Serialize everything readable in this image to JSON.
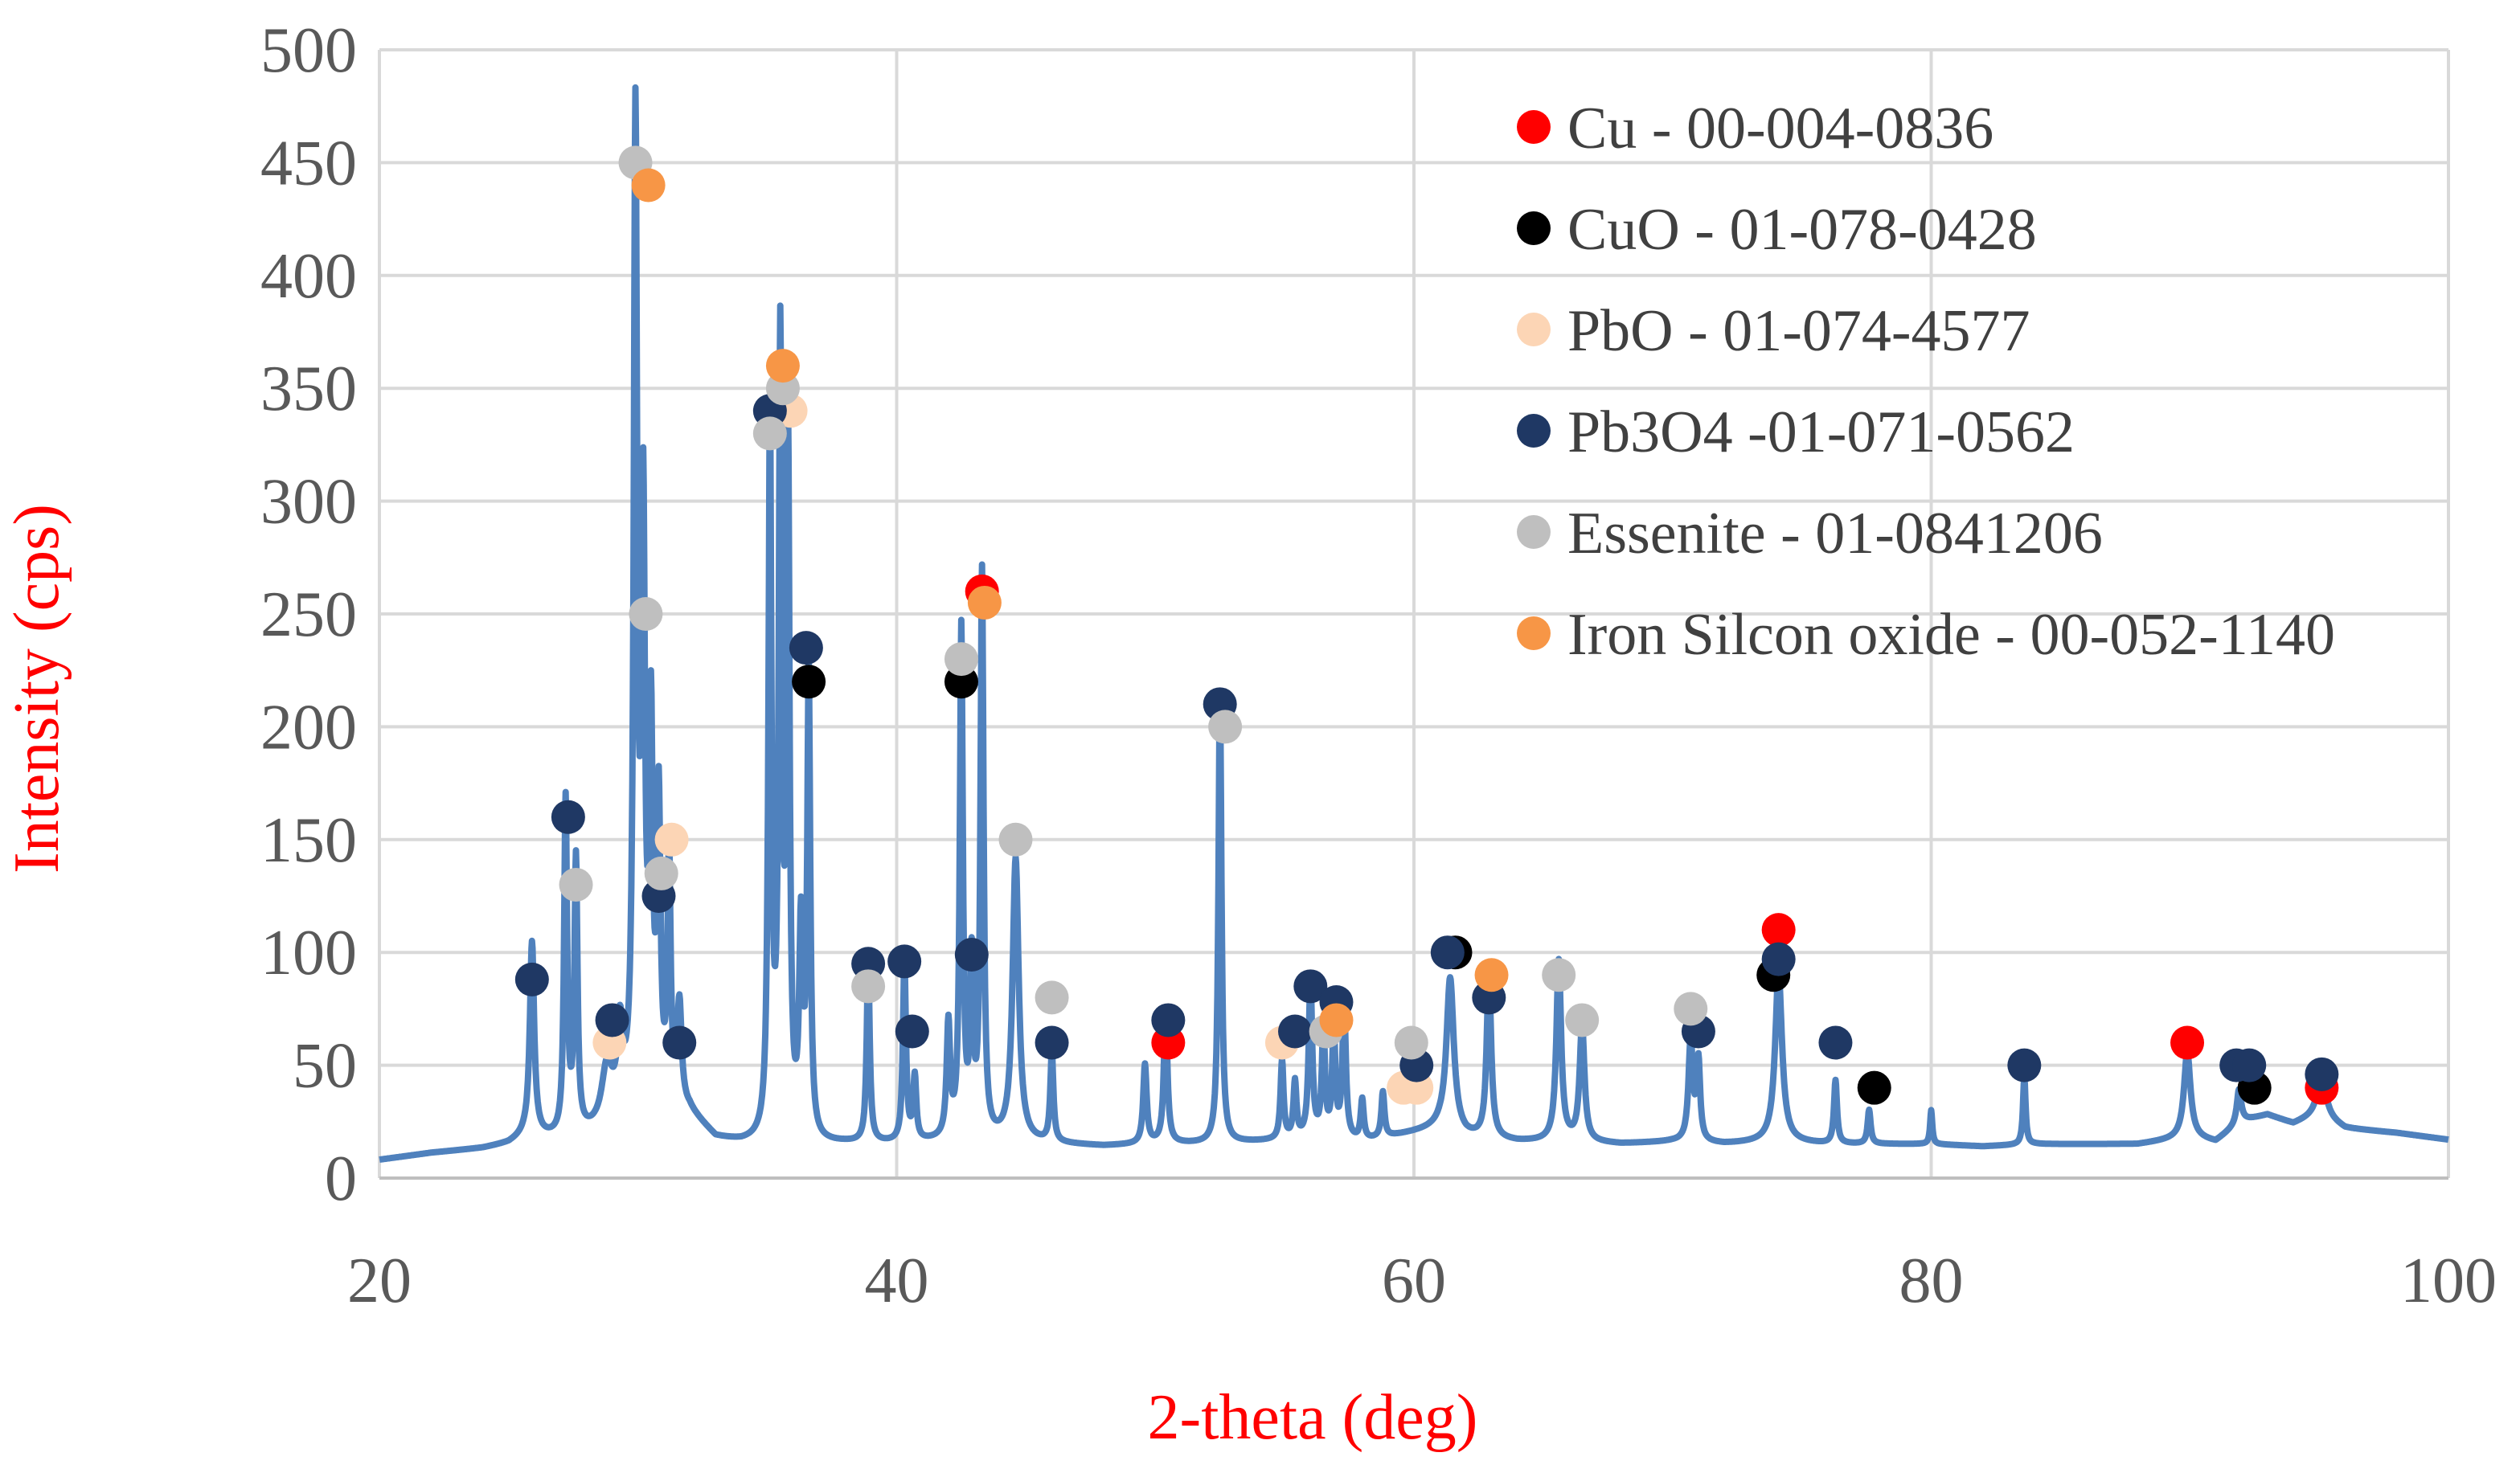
{
  "chart_data": {
    "type": "line",
    "title": "",
    "xlabel": "2-theta (deg)",
    "ylabel": "Intensity (cps)",
    "xlim": [
      20,
      100
    ],
    "ylim": [
      0,
      500
    ],
    "xticks": [
      20,
      40,
      60,
      80,
      100
    ],
    "yticks": [
      0,
      50,
      100,
      150,
      200,
      250,
      300,
      350,
      400,
      450,
      500
    ],
    "grid": true,
    "legend_position": "top-right",
    "line_color": "#4f81bd",
    "baseline": [
      [
        20,
        8
      ],
      [
        22,
        11
      ],
      [
        24,
        13
      ],
      [
        25,
        15
      ],
      [
        25.6,
        18
      ],
      [
        27,
        17
      ],
      [
        28.5,
        20
      ],
      [
        30,
        30
      ],
      [
        32,
        28
      ],
      [
        33,
        17
      ],
      [
        34,
        15
      ],
      [
        36,
        14
      ],
      [
        38,
        15
      ],
      [
        40,
        15
      ],
      [
        42,
        16
      ],
      [
        44,
        16
      ],
      [
        46,
        15
      ],
      [
        48,
        14
      ],
      [
        50,
        15
      ],
      [
        52,
        15
      ],
      [
        54,
        16
      ],
      [
        56,
        17
      ],
      [
        58,
        16
      ],
      [
        60,
        20
      ],
      [
        61,
        22
      ],
      [
        62,
        18
      ],
      [
        64,
        16
      ],
      [
        66,
        16
      ],
      [
        68,
        15
      ],
      [
        70,
        16
      ],
      [
        72,
        15
      ],
      [
        74,
        16
      ],
      [
        76,
        15
      ],
      [
        78,
        15
      ],
      [
        80,
        15
      ],
      [
        82,
        14
      ],
      [
        84,
        15
      ],
      [
        86,
        15
      ],
      [
        88,
        15
      ],
      [
        90,
        18
      ],
      [
        91,
        16
      ],
      [
        92,
        25
      ],
      [
        93,
        28
      ],
      [
        94,
        24
      ],
      [
        95,
        28
      ],
      [
        96,
        22
      ],
      [
        98,
        20
      ],
      [
        100,
        17
      ]
    ],
    "peaks": [
      {
        "x": 25.9,
        "y": 86,
        "w": 0.1
      },
      {
        "x": 27.2,
        "y": 148,
        "w": 0.07
      },
      {
        "x": 27.6,
        "y": 120,
        "w": 0.07
      },
      {
        "x": 28.8,
        "y": 25,
        "w": 0.25
      },
      {
        "x": 29.3,
        "y": 35,
        "w": 0.12
      },
      {
        "x": 29.9,
        "y": 430,
        "w": 0.08
      },
      {
        "x": 30.2,
        "y": 250,
        "w": 0.08
      },
      {
        "x": 30.5,
        "y": 160,
        "w": 0.08
      },
      {
        "x": 30.8,
        "y": 130,
        "w": 0.08
      },
      {
        "x": 31.2,
        "y": 110,
        "w": 0.07
      },
      {
        "x": 31.6,
        "y": 45,
        "w": 0.1
      },
      {
        "x": 35.1,
        "y": 315,
        "w": 0.07
      },
      {
        "x": 35.5,
        "y": 345,
        "w": 0.07
      },
      {
        "x": 35.8,
        "y": 305,
        "w": 0.07
      },
      {
        "x": 36.3,
        "y": 90,
        "w": 0.08
      },
      {
        "x": 36.6,
        "y": 205,
        "w": 0.07
      },
      {
        "x": 38.9,
        "y": 80,
        "w": 0.07
      },
      {
        "x": 40.3,
        "y": 80,
        "w": 0.07
      },
      {
        "x": 40.7,
        "y": 28,
        "w": 0.07
      },
      {
        "x": 42.0,
        "y": 50,
        "w": 0.08
      },
      {
        "x": 42.5,
        "y": 225,
        "w": 0.07
      },
      {
        "x": 42.9,
        "y": 75,
        "w": 0.07
      },
      {
        "x": 43.3,
        "y": 250,
        "w": 0.07
      },
      {
        "x": 44.6,
        "y": 125,
        "w": 0.14
      },
      {
        "x": 46.0,
        "y": 40,
        "w": 0.07
      },
      {
        "x": 49.6,
        "y": 35,
        "w": 0.08
      },
      {
        "x": 50.4,
        "y": 60,
        "w": 0.08
      },
      {
        "x": 52.5,
        "y": 200,
        "w": 0.07
      },
      {
        "x": 54.9,
        "y": 35,
        "w": 0.07
      },
      {
        "x": 55.4,
        "y": 25,
        "w": 0.07
      },
      {
        "x": 56.0,
        "y": 70,
        "w": 0.08
      },
      {
        "x": 56.5,
        "y": 50,
        "w": 0.07
      },
      {
        "x": 56.9,
        "y": 50,
        "w": 0.07
      },
      {
        "x": 57.3,
        "y": 60,
        "w": 0.08
      },
      {
        "x": 58.0,
        "y": 18,
        "w": 0.07
      },
      {
        "x": 58.8,
        "y": 20,
        "w": 0.07
      },
      {
        "x": 61.4,
        "y": 68,
        "w": 0.17
      },
      {
        "x": 62.9,
        "y": 75,
        "w": 0.1
      },
      {
        "x": 65.6,
        "y": 80,
        "w": 0.11
      },
      {
        "x": 66.5,
        "y": 52,
        "w": 0.11
      },
      {
        "x": 70.7,
        "y": 45,
        "w": 0.1
      },
      {
        "x": 71.0,
        "y": 35,
        "w": 0.08
      },
      {
        "x": 74.1,
        "y": 75,
        "w": 0.16
      },
      {
        "x": 76.3,
        "y": 28,
        "w": 0.07
      },
      {
        "x": 77.6,
        "y": 15,
        "w": 0.07
      },
      {
        "x": 80.0,
        "y": 15,
        "w": 0.05
      },
      {
        "x": 83.6,
        "y": 30,
        "w": 0.06
      },
      {
        "x": 89.9,
        "y": 38,
        "w": 0.15
      },
      {
        "x": 91.9,
        "y": 15,
        "w": 0.1
      },
      {
        "x": 95.1,
        "y": 18,
        "w": 0.2
      }
    ],
    "series": [
      {
        "name": "Cu - 00-004-0836",
        "color": "#ff0000",
        "points": [
          [
            43.3,
            260
          ],
          [
            50.5,
            60
          ],
          [
            74.1,
            110
          ],
          [
            89.9,
            60
          ],
          [
            95.1,
            40
          ]
        ]
      },
      {
        "name": "CuO - 01-078-0428",
        "color": "#000000",
        "points": [
          [
            36.6,
            220
          ],
          [
            42.5,
            220
          ],
          [
            61.6,
            100
          ],
          [
            73.9,
            90
          ],
          [
            77.8,
            40
          ],
          [
            92.5,
            40
          ]
        ]
      },
      {
        "name": "PbO - 01-074-4577",
        "color": "#fcd5b5",
        "points": [
          [
            28.9,
            60
          ],
          [
            31.3,
            150
          ],
          [
            35.9,
            340
          ],
          [
            54.9,
            60
          ],
          [
            59.6,
            40
          ],
          [
            60.1,
            40
          ]
        ]
      },
      {
        "name": "Pb3O4 -01-071-0562",
        "color": "#1f3864",
        "points": [
          [
            25.9,
            88
          ],
          [
            27.3,
            160
          ],
          [
            29.0,
            70
          ],
          [
            30.8,
            125
          ],
          [
            31.6,
            60
          ],
          [
            35.1,
            340
          ],
          [
            36.5,
            235
          ],
          [
            38.9,
            95
          ],
          [
            40.3,
            96
          ],
          [
            40.6,
            65
          ],
          [
            42.9,
            99
          ],
          [
            46.0,
            60
          ],
          [
            50.5,
            70
          ],
          [
            52.5,
            210
          ],
          [
            55.4,
            65
          ],
          [
            56.0,
            85
          ],
          [
            57.0,
            78
          ],
          [
            60.1,
            50
          ],
          [
            61.3,
            100
          ],
          [
            62.9,
            80
          ],
          [
            71.0,
            65
          ],
          [
            74.1,
            97
          ],
          [
            76.3,
            60
          ],
          [
            83.6,
            50
          ],
          [
            91.8,
            50
          ],
          [
            92.3,
            50
          ],
          [
            95.1,
            46
          ]
        ]
      },
      {
        "name": "Essenite - 01-0841206",
        "color": "#bfbfbf",
        "points": [
          [
            27.6,
            130
          ],
          [
            29.9,
            450
          ],
          [
            30.3,
            250
          ],
          [
            30.9,
            135
          ],
          [
            35.1,
            330
          ],
          [
            35.6,
            350
          ],
          [
            38.9,
            85
          ],
          [
            42.5,
            230
          ],
          [
            44.6,
            150
          ],
          [
            46.0,
            80
          ],
          [
            52.7,
            200
          ],
          [
            56.6,
            65
          ],
          [
            59.9,
            60
          ],
          [
            65.6,
            90
          ],
          [
            66.5,
            70
          ],
          [
            70.7,
            75
          ]
        ]
      },
      {
        "name": "Iron Silcon oxide - 00-052-1140",
        "color": "#f79646",
        "points": [
          [
            30.4,
            440
          ],
          [
            35.6,
            360
          ],
          [
            43.4,
            255
          ],
          [
            57.0,
            70
          ],
          [
            63.0,
            90
          ]
        ]
      }
    ]
  }
}
